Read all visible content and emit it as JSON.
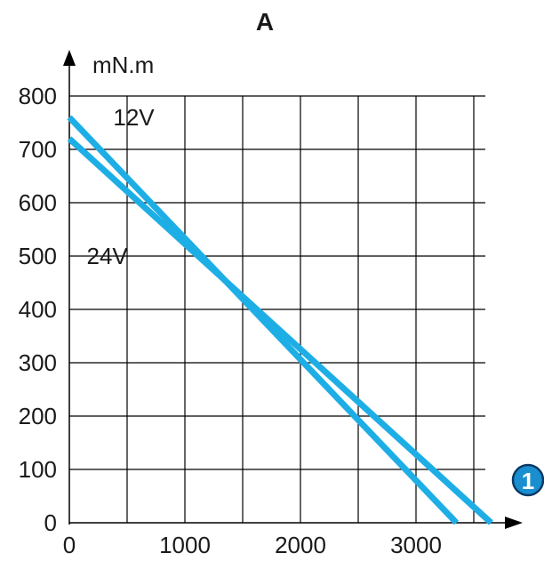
{
  "chart_data": {
    "type": "line",
    "title": "A",
    "ylabel": "mN.m",
    "xlabel": "",
    "xlim": [
      0,
      3600
    ],
    "ylim": [
      0,
      800
    ],
    "xticks": [
      0,
      1000,
      2000,
      3000
    ],
    "yticks": [
      0,
      100,
      200,
      300,
      400,
      500,
      600,
      700,
      800
    ],
    "grid": true,
    "axis_marker": "1",
    "series": [
      {
        "name": "12V",
        "x": [
          0,
          3350
        ],
        "y": [
          760,
          0
        ]
      },
      {
        "name": "24V",
        "x": [
          0,
          3650
        ],
        "y": [
          720,
          0
        ]
      }
    ],
    "colors": {
      "series": "#1eaee6",
      "grid": "#000000",
      "marker": "#1a8fd0"
    }
  }
}
